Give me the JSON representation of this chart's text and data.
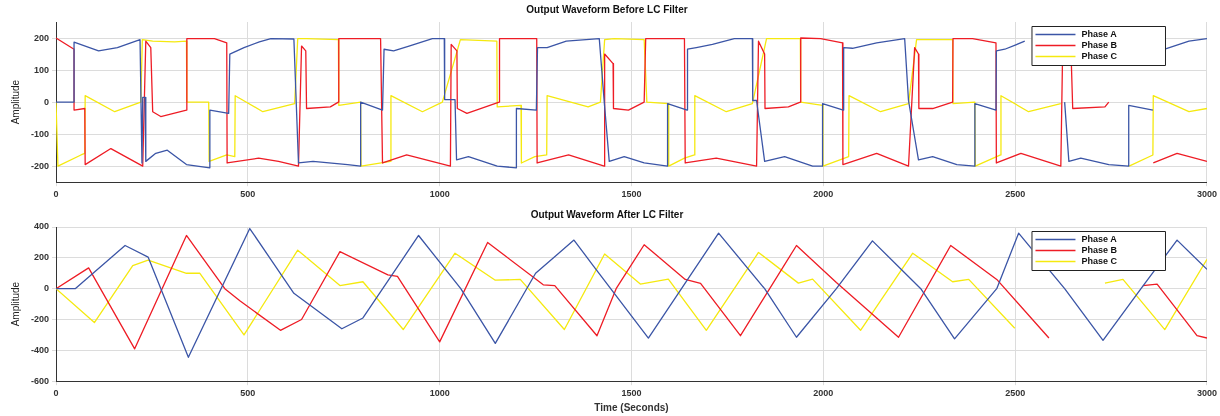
{
  "chart_data": [
    {
      "type": "line",
      "title": "Output Waveform Before LC Filter",
      "ylabel": "Amplitude",
      "xlim": [
        0,
        3000
      ],
      "xticks": [
        0,
        500,
        1000,
        1500,
        2000,
        2500,
        3000
      ],
      "ylim": [
        -250,
        250
      ],
      "yticks": [
        -200,
        -100,
        0,
        100,
        200
      ],
      "grid": true,
      "legend": "top right",
      "series": [
        {
          "name": "Phase A",
          "color": "#3b55a6",
          "x": [
            0,
            47,
            47,
            111,
            160,
            219,
            224,
            226,
            232,
            234,
            260,
            290,
            340,
            401,
            401,
            450,
            453,
            490,
            530,
            560,
            620,
            632,
            670,
            760,
            794,
            794,
            851,
            855,
            880,
            920,
            981,
            1012,
            1013,
            1040,
            1044,
            1075,
            1150,
            1200,
            1200,
            1252,
            1255,
            1280,
            1330,
            1416,
            1429,
            1442,
            1481,
            1533,
            1594,
            1594,
            1645,
            1646,
            1669,
            1711,
            1768,
            1815,
            1816,
            1826,
            1847,
            1899,
            1972,
            1998,
            1998,
            2052,
            2053,
            2076,
            2139,
            2212,
            2222,
            2248,
            2285,
            2348,
            2395,
            2395,
            2450,
            2451,
            2473,
            2525,
            2600,
            2629,
            2640,
            2671,
            2744,
            2796,
            2796,
            2859,
            2860,
            2890,
            2953,
            3000
          ],
          "values": [
            0,
            0,
            187,
            160,
            170,
            195,
            -190,
            15,
            15,
            -185,
            -160,
            -150,
            -195,
            -205,
            -25,
            -35,
            150,
            170,
            188,
            198,
            197,
            -190,
            -185,
            -195,
            -200,
            0,
            -25,
            165,
            160,
            175,
            198,
            198,
            8,
            8,
            -180,
            -170,
            -200,
            -205,
            -20,
            -25,
            170,
            170,
            190,
            198,
            0,
            -185,
            -170,
            -190,
            -200,
            -5,
            -25,
            165,
            170,
            180,
            198,
            198,
            5,
            5,
            -185,
            -170,
            -200,
            -200,
            -5,
            -25,
            170,
            168,
            185,
            198,
            5,
            -180,
            -170,
            -195,
            -200,
            -5,
            -25,
            160,
            165,
            190,
            null,
            0,
            -185,
            -175,
            -195,
            -200,
            -10,
            -25,
            null,
            165,
            190,
            198
          ]
        },
        {
          "name": "Phase B",
          "color": "#ee1c25",
          "x": [
            0,
            47,
            47,
            75,
            76,
            143,
            226,
            234,
            247,
            252,
            273,
            340,
            341,
            413,
            445,
            446,
            528,
            580,
            632,
            640,
            651,
            653,
            715,
            736,
            737,
            846,
            851,
            914,
            1028,
            1030,
            1045,
            1046,
            1071,
            1155,
            1156,
            1253,
            1254,
            1336,
            1429,
            1430,
            1452,
            1453,
            1492,
            1533,
            1537,
            1638,
            1640,
            1721,
            1826,
            1831,
            1847,
            1848,
            1909,
            1940,
            1941,
            1993,
            2050,
            2051,
            2139,
            2222,
            2238,
            2248,
            2249,
            2285,
            2337,
            2338,
            2389,
            2450,
            2451,
            2515,
            2619,
            2624,
            2645,
            2650,
            2734,
            2744,
            2745,
            2817,
            2859,
            2860,
            2922,
            3000
          ],
          "values": [
            200,
            165,
            -25,
            -20,
            -195,
            -145,
            -200,
            190,
            170,
            -30,
            -45,
            -25,
            198,
            198,
            185,
            -190,
            -175,
            -185,
            -200,
            175,
            160,
            -20,
            -15,
            0,
            198,
            198,
            -190,
            -165,
            -200,
            180,
            160,
            -20,
            -35,
            0,
            198,
            198,
            -190,
            -165,
            -200,
            150,
            120,
            -20,
            -25,
            0,
            198,
            198,
            -190,
            -175,
            -200,
            190,
            150,
            -20,
            -15,
            0,
            200,
            198,
            185,
            -195,
            -160,
            -200,
            170,
            150,
            -20,
            -20,
            0,
            198,
            198,
            185,
            -190,
            -160,
            -200,
            180,
            180,
            -20,
            -15,
            0,
            null,
            null,
            null,
            -190,
            -160,
            -185
          ]
        },
        {
          "name": "Phase C",
          "color": "#f5e90f",
          "x": [
            0,
            5,
            65,
            75,
            76,
            153,
            221,
            225,
            252,
            309,
            340,
            341,
            398,
            399,
            445,
            466,
            467,
            539,
            622,
            630,
            653,
            736,
            737,
            794,
            795,
            872,
            873,
            955,
            1007,
            1054,
            1149,
            1150,
            1212,
            1213,
            1248,
            1279,
            1280,
            1387,
            1419,
            1430,
            1455,
            1533,
            1540,
            1596,
            1597,
            1638,
            1664,
            1665,
            1747,
            1815,
            1852,
            1940,
            1941,
            1998,
            1999,
            2066,
            2067,
            2149,
            2222,
            2243,
            2337,
            2338,
            2395,
            2396,
            2462,
            2463,
            2535,
            2619,
            2650,
            2734,
            2796,
            2797,
            2859,
            2860,
            2953,
            3000
          ],
          "values": [
            0,
            -200,
            -165,
            -160,
            20,
            -30,
            0,
            195,
            190,
            188,
            190,
            0,
            0,
            -185,
            -165,
            -170,
            20,
            -30,
            -5,
            198,
            198,
            195,
            -10,
            0,
            -200,
            -185,
            20,
            -30,
            0,
            195,
            190,
            -15,
            -10,
            -190,
            -170,
            -165,
            20,
            -15,
            0,
            195,
            198,
            195,
            0,
            -5,
            -200,
            -175,
            -165,
            20,
            -30,
            -5,
            198,
            198,
            0,
            -10,
            -200,
            -170,
            20,
            -30,
            -5,
            195,
            195,
            -5,
            0,
            -200,
            -165,
            20,
            -30,
            -5,
            null,
            null,
            null,
            -200,
            -165,
            20,
            -30,
            -20
          ]
        }
      ]
    },
    {
      "type": "line",
      "title": "Output Waveform After LC Filter",
      "xlabel": "Time (Seconds)",
      "ylabel": "Amplitude",
      "xlim": [
        0,
        3000
      ],
      "xticks": [
        0,
        500,
        1000,
        1500,
        2000,
        2500,
        3000
      ],
      "ylim": [
        -600,
        400
      ],
      "yticks": [
        -600,
        -400,
        -200,
        0,
        200,
        400
      ],
      "grid": true,
      "legend": "top right",
      "series": [
        {
          "name": "Phase A",
          "color": "#3b55a6",
          "x": [
            0,
            50,
            180,
            240,
            345,
            505,
            620,
            745,
            800,
            945,
            1055,
            1145,
            1250,
            1350,
            1400,
            1544,
            1727,
            1847,
            1930,
            2034,
            2128,
            2254,
            2342,
            2452,
            2509,
            2629,
            2729,
            2828,
            2922,
            3000
          ],
          "values": [
            0,
            0,
            280,
            205,
            -445,
            390,
            -30,
            -260,
            -190,
            345,
            0,
            -355,
            100,
            315,
            150,
            -320,
            360,
            0,
            -315,
            0,
            310,
            0,
            -325,
            0,
            360,
            0,
            -335,
            0,
            315,
            125
          ]
        },
        {
          "name": "Phase B",
          "color": "#ee1c25",
          "x": [
            0,
            85,
            205,
            340,
            440,
            480,
            585,
            640,
            740,
            865,
            890,
            1000,
            1125,
            1270,
            1300,
            1410,
            1460,
            1533,
            1640,
            1680,
            1784,
            1930,
            2034,
            2196,
            2332,
            2452,
            2588,
            2744,
            2833,
            2870,
            2974,
            3000
          ],
          "values": [
            0,
            135,
            -390,
            345,
            0,
            -80,
            -270,
            -200,
            240,
            90,
            80,
            -345,
            300,
            25,
            20,
            -305,
            0,
            285,
            60,
            35,
            -305,
            280,
            40,
            -315,
            280,
            60,
            -320,
            null,
            20,
            30,
            -305,
            -320
          ]
        },
        {
          "name": "Phase C",
          "color": "#f5e90f",
          "x": [
            0,
            100,
            200,
            240,
            340,
            375,
            490,
            630,
            740,
            800,
            905,
            1040,
            1145,
            1210,
            1325,
            1430,
            1523,
            1596,
            1695,
            1831,
            1935,
            1972,
            2097,
            2233,
            2337,
            2379,
            2499,
            2671,
            2734,
            2781,
            2890,
            3000
          ],
          "values": [
            0,
            -220,
            150,
            185,
            100,
            100,
            -300,
            250,
            20,
            45,
            -265,
            230,
            55,
            60,
            -265,
            225,
            30,
            62,
            -270,
            235,
            36,
            62,
            -270,
            230,
            45,
            60,
            -257,
            null,
            36,
            60,
            -265,
            190
          ]
        }
      ]
    }
  ]
}
